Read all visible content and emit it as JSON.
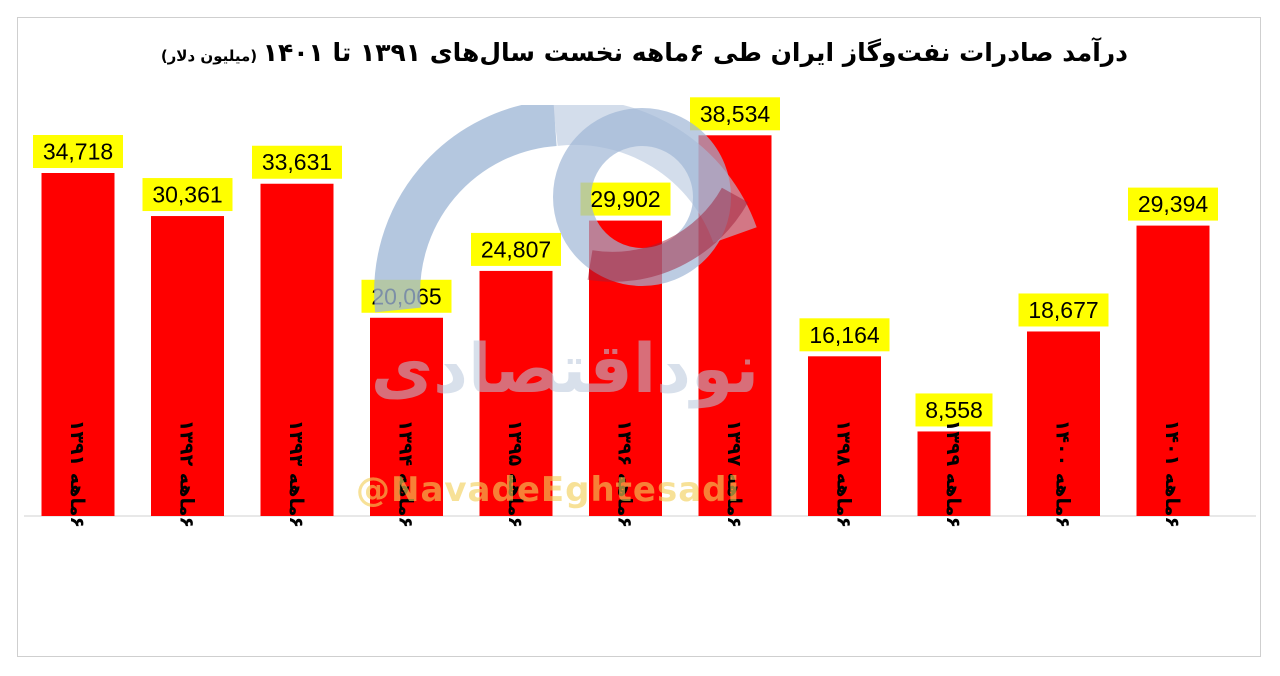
{
  "chart_data": {
    "type": "bar",
    "title": "درآمد صادرات نفت‌وگاز ایران طی ۶ماهه نخست سال‌های ۱۳۹۱ تا ۱۴۰۱",
    "unit_note": "(میلیون دلار)",
    "categories": [
      "۶ماهه ۱۳۹۱",
      "۶ماهه ۱۳۹۲",
      "۶ماهه ۱۳۹۳",
      "۶ماهه ۱۳۹۴",
      "۶ماهه ۱۳۹۵",
      "۶ماهه ۱۳۹۶",
      "۶ماهه ۱۳۹۷",
      "۶ماهه ۱۳۹۸",
      "۶ماهه ۱۳۹۹",
      "۶ماهه ۱۴۰۰",
      "۶ماهه ۱۴۰۱"
    ],
    "values": [
      34718,
      30361,
      33631,
      20065,
      24807,
      29902,
      38534,
      16164,
      8558,
      18677,
      29394
    ],
    "value_labels": [
      "34,718",
      "30,361",
      "33,631",
      "20,065",
      "24,807",
      "29,902",
      "38,534",
      "16,164",
      "8,558",
      "18,677",
      "29,394"
    ],
    "ylim": [
      0,
      41500
    ],
    "xlabel": "",
    "ylabel": "",
    "grid": false,
    "legend": "none",
    "bar_color": "#ff0000",
    "label_bg_color": "#ffff00",
    "label_text_color": "#000000"
  },
  "watermark": {
    "logo_text": "نوداقتصادی",
    "handle": "@NavadeEghtesadi"
  }
}
